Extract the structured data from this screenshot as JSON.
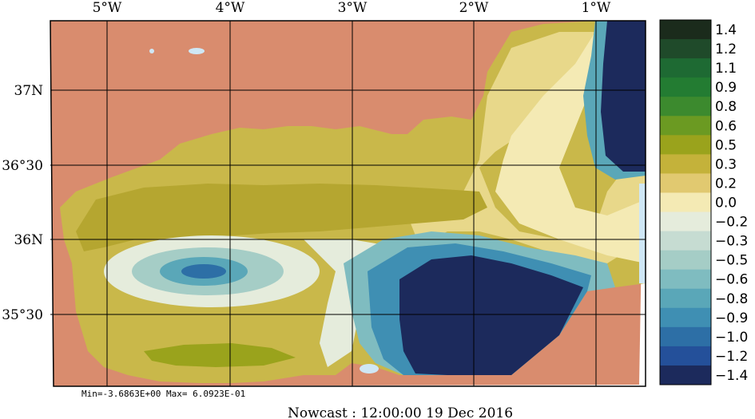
{
  "map": {
    "top_lon_labels": [
      "5°W",
      "4°W",
      "3°W",
      "2°W",
      "1°W"
    ],
    "left_lat_labels": [
      "37N",
      "36°30",
      "36N",
      "35°30"
    ],
    "stats_text": "Min=-3.6863E+00  Max= 6.0923E-01",
    "caption": "Nowcast : 12:00:00  19 Dec 2016",
    "colors": {
      "land": "#d98c6e",
      "water_light": "#cfe7f5",
      "grid": "#000000"
    }
  },
  "colorbar": {
    "labels": [
      "1.4",
      "1.2",
      "1.1",
      "0.9",
      "0.8",
      "0.6",
      "0.5",
      "0.3",
      "0.2",
      "0.0",
      "−0.2",
      "−0.3",
      "−0.5",
      "−0.6",
      "−0.8",
      "−0.9",
      "−1.0",
      "−1.2",
      "−1.4"
    ],
    "colors": [
      "#1b2b1c",
      "#1f4a2a",
      "#1e6a33",
      "#237c32",
      "#3c8a2e",
      "#6b9a22",
      "#9aa31c",
      "#c4b23a",
      "#e1c970",
      "#f4eab4",
      "#e5ecdc",
      "#c6dcd2",
      "#a5cdc6",
      "#7fbcc0",
      "#5aa7b8",
      "#3f8fb3",
      "#2d6fa6",
      "#24509a",
      "#1c2a5c"
    ]
  }
}
